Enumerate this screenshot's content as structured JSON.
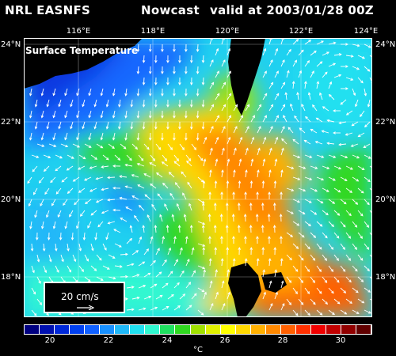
{
  "header": {
    "org": "NRL EASNFS",
    "type": "Nowcast",
    "valid": "valid at 2003/01/28 00Z"
  },
  "map": {
    "label": "Surface Temperature",
    "lon_labels": [
      "116°E",
      "118°E",
      "120°E",
      "122°E",
      "124°E"
    ],
    "lat_labels": [
      "24°N",
      "22°N",
      "20°N",
      "18°N"
    ],
    "land_color": "#000000",
    "current_vector_color": "#ffffff"
  },
  "scale": {
    "label": "20 cm/s"
  },
  "colorbar": {
    "tick_labels": [
      "20",
      "22",
      "24",
      "26",
      "28",
      "30"
    ],
    "unit": "°C",
    "colors": [
      "#000080",
      "#0010b0",
      "#0028d8",
      "#0040f0",
      "#1060ff",
      "#1890ff",
      "#20b8f8",
      "#20e0f0",
      "#30f8d0",
      "#20e060",
      "#30d820",
      "#a0e000",
      "#e0f000",
      "#ffff00",
      "#ffd800",
      "#ffb000",
      "#ff8800",
      "#ff6000",
      "#ff3000",
      "#f00000",
      "#c00000",
      "#900000",
      "#600000"
    ]
  }
}
